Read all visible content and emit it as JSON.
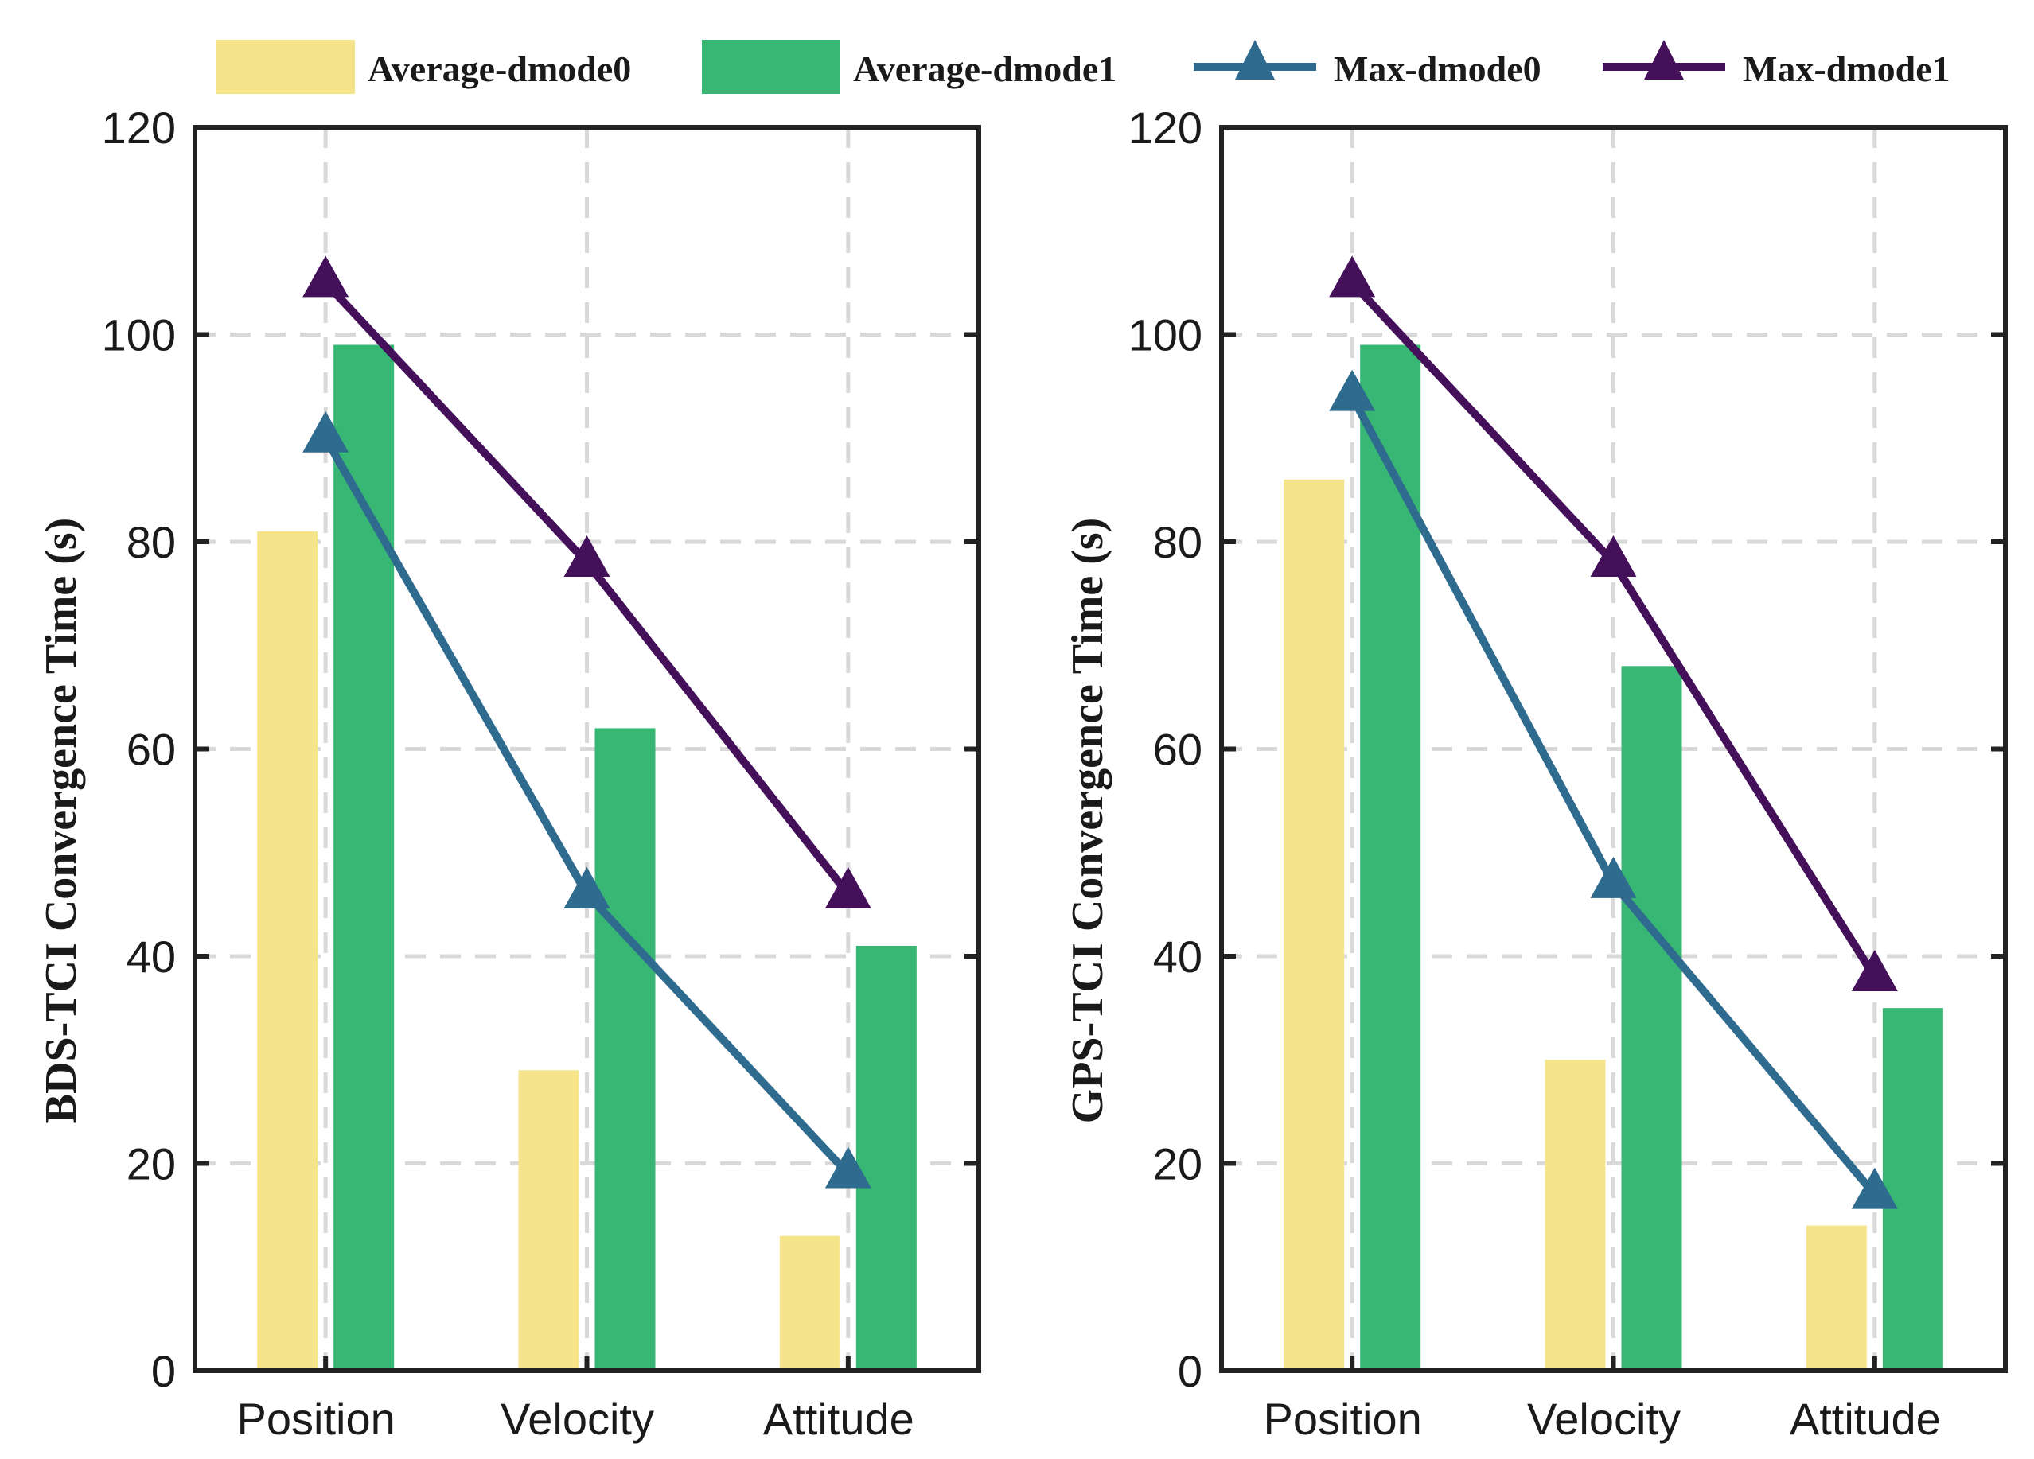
{
  "chart_data": [
    {
      "type": "bar",
      "categories": [
        "Position",
        "Velocity",
        "Attitude"
      ],
      "ylabel": "BDS-TCI Convergence Time (s)",
      "ylim": [
        0,
        120
      ],
      "yticks": [
        0,
        20,
        40,
        60,
        80,
        100,
        120
      ],
      "grid": true,
      "series": [
        {
          "name": "Average-dmode0",
          "kind": "bar",
          "color": "#f5e48a",
          "values": [
            81,
            29,
            13
          ]
        },
        {
          "name": "Average-dmode1",
          "kind": "bar",
          "color": "#38b774",
          "values": [
            99,
            62,
            41
          ]
        },
        {
          "name": "Max-dmode0",
          "kind": "line",
          "marker": "triangle",
          "color": "#2e6b8e",
          "values": [
            90,
            46,
            19
          ]
        },
        {
          "name": "Max-dmode1",
          "kind": "line",
          "marker": "triangle",
          "color": "#45105a",
          "values": [
            105,
            78,
            46
          ]
        }
      ]
    },
    {
      "type": "bar",
      "categories": [
        "Position",
        "Velocity",
        "Attitude"
      ],
      "ylabel": "GPS-TCI Convergence Time (s)",
      "ylim": [
        0,
        120
      ],
      "yticks": [
        0,
        20,
        40,
        60,
        80,
        100,
        120
      ],
      "grid": true,
      "series": [
        {
          "name": "Average-dmode0",
          "kind": "bar",
          "color": "#f5e48a",
          "values": [
            86,
            30,
            14
          ]
        },
        {
          "name": "Average-dmode1",
          "kind": "bar",
          "color": "#38b774",
          "values": [
            99,
            68,
            35
          ]
        },
        {
          "name": "Max-dmode0",
          "kind": "line",
          "marker": "triangle",
          "color": "#2e6b8e",
          "values": [
            94,
            47,
            17
          ]
        },
        {
          "name": "Max-dmode1",
          "kind": "line",
          "marker": "triangle",
          "color": "#45105a",
          "values": [
            105,
            78,
            38
          ]
        }
      ]
    }
  ],
  "legend": {
    "placement": "top",
    "items": [
      {
        "label": "Average-dmode0",
        "kind": "bar",
        "color": "#f5e48a"
      },
      {
        "label": "Average-dmode1",
        "kind": "bar",
        "color": "#38b774"
      },
      {
        "label": "Max-dmode0",
        "kind": "line",
        "color": "#2e6b8e"
      },
      {
        "label": "Max-dmode1",
        "kind": "line",
        "color": "#45105a"
      }
    ]
  }
}
